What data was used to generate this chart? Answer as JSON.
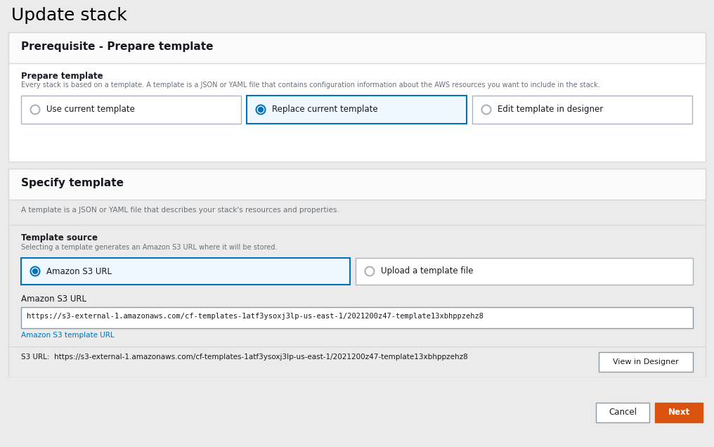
{
  "page_bg": "#ebebeb",
  "white": "#ffffff",
  "title": "Update stack",
  "title_color": "#000000",
  "section1_title": "Prerequisite - Prepare template",
  "section1_bg": "#ffffff",
  "section2_title": "Specify template",
  "section2_bg": "#ffffff",
  "prepare_label": "Prepare template",
  "prepare_desc": "Every stack is based on a template. A template is a JSON or YAML file that contains configuration information about the AWS resources you want to include in the stack.",
  "radio_options": [
    "Use current template",
    "Replace current template",
    "Edit template in designer"
  ],
  "radio_selected": 1,
  "selected_radio_color": "#0073bb",
  "selected_box_border": "#0073bb",
  "selected_box_bg": "#f0f8ff",
  "unselected_box_border": "#aab3bc",
  "unselected_box_bg": "#ffffff",
  "specify_desc": "A template is a JSON or YAML file that describes your stack's resources and properties.",
  "template_source_label": "Template source",
  "template_source_desc": "Selecting a template generates an Amazon S3 URL where it will be stored.",
  "source_options": [
    "Amazon S3 URL",
    "Upload a template file"
  ],
  "source_selected": 0,
  "amazon_s3_url_label": "Amazon S3 URL",
  "amazon_s3_url_value": "https://s3-external-1.amazonaws.com/cf-templates-1atf3ysoxj3lp-us-east-1/2021200z47-template13xbhppzehz8",
  "amazon_s3_template_url_hint": "Amazon S3 template URL",
  "s3_url_text": "S3 URL:  https://s3-external-1.amazonaws.com/cf-templates-1atf3ysoxj3lp-us-east-1/2021200z47-template13xbhppzehz8",
  "view_designer_btn": "View in Designer",
  "cancel_btn": "Cancel",
  "next_btn": "Next",
  "next_btn_color": "#d9530f",
  "next_btn_text_color": "#ffffff",
  "cancel_btn_color": "#ffffff",
  "cancel_btn_border": "#8a9aa5",
  "cancel_btn_text_color": "#16191f",
  "view_designer_border": "#8a9aa5",
  "view_designer_text_color": "#16191f",
  "label_color": "#16191f",
  "desc_color": "#687078",
  "hint_color": "#0073bb",
  "divider_color": "#d5dbdb",
  "section_border": "#d5dbdb",
  "input_border": "#8a9aa5",
  "input_bg": "#ffffff",
  "bold_label_color": "#16191f",
  "header_bg": "#fafafa",
  "prepare_label_color": "#16191f"
}
